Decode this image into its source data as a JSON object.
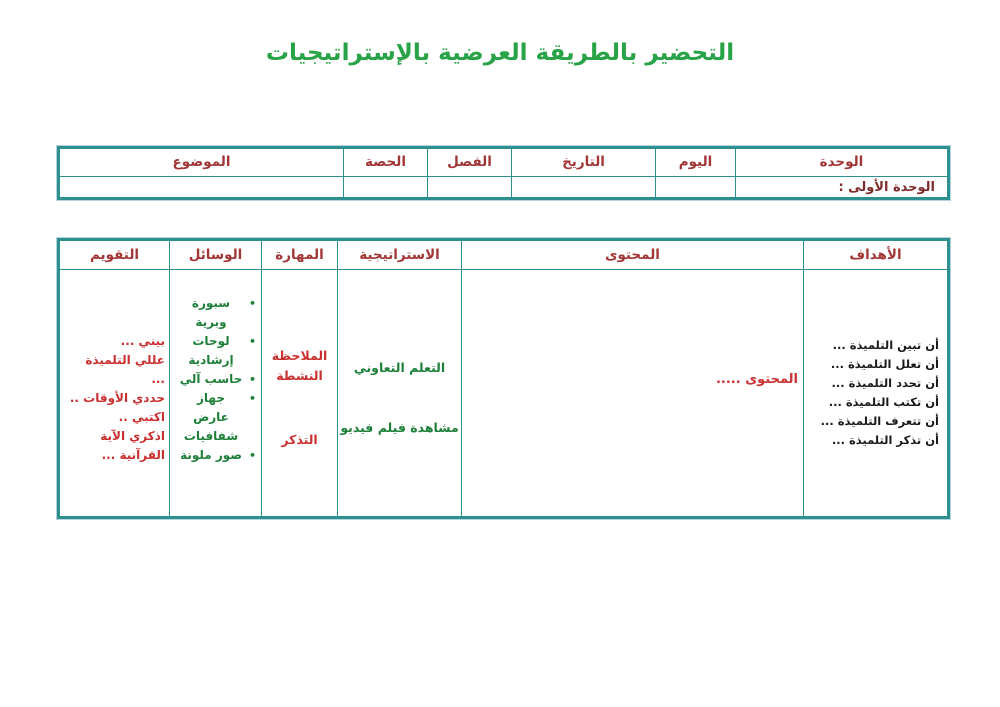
{
  "page": {
    "title": "التحضير بالطريقة العرضية بالإستراتيجيات"
  },
  "colors": {
    "title_green": "#29A347",
    "content_green": "#1E8038",
    "header_red": "#A23535",
    "content_red": "#C9302F",
    "unit_maroon": "#7D2B2B",
    "objectives_black": "#1A1A1A",
    "border_teal": "#2E8F8F"
  },
  "icons": {
    "bullet_icon": "●"
  },
  "info_table": {
    "headers": [
      "الوحدة",
      "اليوم",
      "التاريخ",
      "الفصل",
      "الحصة",
      "الموضوع"
    ],
    "row": {
      "unit_value": "الوحدة الأولى :",
      "day_value": "",
      "date_value": "",
      "class_value": "",
      "period_value": "",
      "topic_value": ""
    }
  },
  "plan_table": {
    "headers": [
      "الأهداف",
      "المحتوى",
      "الاستراتيجية",
      "المهارة",
      "الوسائل",
      "التقويم"
    ],
    "objectives": [
      "أن تبين التلميذة ...",
      "أن تعلل التلميذة ...",
      "أن تحدد التلميذة ...",
      "أن تكتب التلميذة ...",
      "أن تتعرف التلميذة ...",
      "أن تذكر التلميذة ..."
    ],
    "content_value": "المحتوى .....",
    "strategies": [
      "التعلم التعاوني",
      "مشاهدة فيلم فيديو"
    ],
    "skills": [
      "الملاحظة النشطة",
      "التذكر"
    ],
    "means": [
      "سبورة وبرية",
      "لوحات إرشادية",
      "حاسب آلي",
      "جهاز عارض شفافيات",
      "صور ملونة"
    ],
    "evaluation": [
      "بيني ...",
      "عللي التلميذة ...",
      "حددي الأوقات ..",
      "اكتبي ..",
      "اذكري الآية القرآنية ..."
    ]
  }
}
